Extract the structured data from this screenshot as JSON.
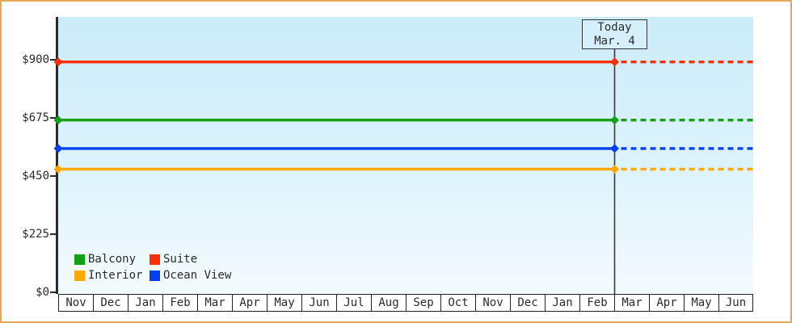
{
  "frame": {
    "border_color": "#E8A55C",
    "background_color": "#FFFFFF"
  },
  "plot": {
    "bg_top_color": "#CBECFA",
    "bg_bottom_color": "#F4FBFE",
    "axis_color": "#2B2B2B"
  },
  "chart_data": {
    "type": "line",
    "title": "",
    "xlabel": "",
    "ylabel": "",
    "grid": false,
    "y_axis": {
      "tick_labels": [
        "$0",
        "$225",
        "$450",
        "$675",
        "$900"
      ],
      "tick_values": [
        0,
        225,
        450,
        675,
        900
      ]
    },
    "ylim": [
      0,
      1065
    ],
    "x_categories": [
      "Nov",
      "Dec",
      "Jan",
      "Feb",
      "Mar",
      "Apr",
      "May",
      "Jun",
      "Jul",
      "Aug",
      "Sep",
      "Oct",
      "Nov",
      "Dec",
      "Jan",
      "Feb",
      "Mar",
      "Apr",
      "May",
      "Jun"
    ],
    "series": [
      {
        "name": "Suite",
        "color": "#FB2F00",
        "price": 890,
        "past_style": "solid",
        "future_style": "dashed"
      },
      {
        "name": "Balcony",
        "color": "#14A014",
        "price": 665,
        "past_style": "solid",
        "future_style": "dashed"
      },
      {
        "name": "Ocean View",
        "color": "#0540F0",
        "price": 555,
        "past_style": "solid",
        "future_style": "dashed"
      },
      {
        "name": "Interior",
        "color": "#FFA800",
        "price": 475,
        "past_style": "solid",
        "future_style": "dashed"
      }
    ],
    "today": {
      "line1": "Today",
      "line2": "Mar. 4",
      "month_index": 16,
      "line_color": "#3A3A3A"
    },
    "legend": {
      "position": "bottom-left",
      "order": [
        "Balcony",
        "Suite",
        "Interior",
        "Ocean View"
      ]
    }
  }
}
